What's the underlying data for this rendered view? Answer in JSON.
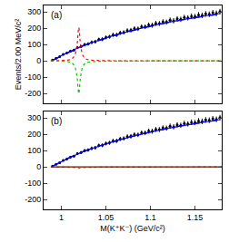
{
  "chart_data": [
    {
      "type": "scatter",
      "annotation": "(a)",
      "y_label": "Events/2.00 MeV/c²",
      "xlim": [
        0.98,
        1.18
      ],
      "xticks": [
        1,
        1.05,
        1.1,
        1.15
      ],
      "ylim": [
        -260,
        340
      ],
      "yticks": [
        -200,
        -100,
        0,
        100,
        200,
        300
      ],
      "tick_labels": "y",
      "series": [
        {
          "type": "scatter",
          "color": "#000000",
          "marker": "circle",
          "x": [
            0.99,
            0.994,
            0.998,
            1.002,
            1.006,
            1.01,
            1.014,
            1.018,
            1.022,
            1.026,
            1.03,
            1.034,
            1.038,
            1.042,
            1.046,
            1.05,
            1.054,
            1.058,
            1.062,
            1.066,
            1.07,
            1.074,
            1.078,
            1.082,
            1.086,
            1.09,
            1.094,
            1.098,
            1.102,
            1.106,
            1.11,
            1.114,
            1.118,
            1.122,
            1.126,
            1.13,
            1.134,
            1.138,
            1.142,
            1.146,
            1.15,
            1.154,
            1.158,
            1.162,
            1.166,
            1.17,
            1.174,
            1.178
          ],
          "values": [
            5,
            16,
            26,
            40,
            48,
            60,
            66,
            82,
            88,
            100,
            104,
            114,
            118,
            132,
            133,
            144,
            148,
            160,
            160,
            172,
            175,
            186,
            188,
            198,
            197,
            210,
            209,
            220,
            219,
            230,
            229,
            240,
            238,
            250,
            246,
            258,
            255,
            267,
            264,
            274,
            272,
            282,
            279,
            288,
            286,
            295,
            292,
            302
          ],
          "error": [
            2,
            4,
            5,
            6,
            7,
            8,
            8,
            9,
            9,
            10,
            10,
            11,
            11,
            11,
            12,
            12,
            12,
            13,
            13,
            13,
            13,
            14,
            14,
            14,
            14,
            14,
            14,
            15,
            15,
            15,
            15,
            15,
            15,
            16,
            16,
            16,
            16,
            16,
            16,
            17,
            16,
            17,
            17,
            17,
            17,
            17,
            17,
            17
          ]
        },
        {
          "type": "line",
          "color": "#0000ff",
          "line_style": "solid",
          "x": [
            0.99,
            0.994,
            0.998,
            1.002,
            1.006,
            1.01,
            1.014,
            1.018,
            1.022,
            1.026,
            1.03,
            1.034,
            1.038,
            1.042,
            1.046,
            1.05,
            1.054,
            1.058,
            1.062,
            1.066,
            1.07,
            1.074,
            1.078,
            1.082,
            1.086,
            1.09,
            1.094,
            1.098,
            1.102,
            1.106,
            1.11,
            1.114,
            1.118,
            1.122,
            1.126,
            1.13,
            1.134,
            1.138,
            1.142,
            1.146,
            1.15,
            1.154,
            1.158,
            1.162,
            1.166,
            1.17,
            1.174,
            1.178
          ],
          "values": [
            5,
            15,
            27,
            38,
            49,
            59,
            68,
            78,
            88,
            97,
            105,
            113,
            120,
            127,
            134,
            141,
            148,
            155,
            161,
            167,
            173,
            179,
            185,
            190,
            196,
            201,
            206,
            211,
            216,
            221,
            226,
            230,
            235,
            239,
            243,
            247,
            251,
            255,
            259,
            262,
            266,
            270,
            273,
            277,
            280,
            283,
            287,
            290
          ]
        },
        {
          "type": "line",
          "color": "#0000ff",
          "line_style": "dashed",
          "x": [
            0.99,
            0.994,
            0.998,
            1.002,
            1.006,
            1.01,
            1.014,
            1.018,
            1.022,
            1.026,
            1.03,
            1.034,
            1.038,
            1.042,
            1.046,
            1.05,
            1.054,
            1.058,
            1.062,
            1.066,
            1.07,
            1.074,
            1.078,
            1.082,
            1.086,
            1.09,
            1.094,
            1.098,
            1.102,
            1.106,
            1.11,
            1.114,
            1.118,
            1.122,
            1.126,
            1.13,
            1.134,
            1.138,
            1.142,
            1.146,
            1.15,
            1.154,
            1.158,
            1.162,
            1.166,
            1.17,
            1.174,
            1.178
          ],
          "values": [
            4,
            13,
            24,
            35,
            46,
            56,
            65,
            76,
            86,
            95,
            103,
            111,
            118,
            125,
            132,
            139,
            146,
            153,
            159,
            165,
            171,
            177,
            183,
            188,
            194,
            199,
            204,
            209,
            214,
            219,
            224,
            228,
            233,
            237,
            241,
            245,
            249,
            253,
            257,
            260,
            264,
            268,
            271,
            275,
            278,
            281,
            285,
            288
          ]
        },
        {
          "type": "line",
          "color": "#ff0000",
          "line_style": "dotted",
          "x": [
            0.988,
            1.0,
            1.008,
            1.012,
            1.015,
            1.017,
            1.018,
            1.019,
            1.0195,
            1.02,
            1.021,
            1.022,
            1.024,
            1.027,
            1.032,
            1.04,
            1.06,
            1.18
          ],
          "values": [
            0,
            2,
            6,
            14,
            35,
            80,
            120,
            190,
            205,
            190,
            120,
            80,
            35,
            14,
            6,
            3,
            1,
            0
          ]
        },
        {
          "type": "line",
          "color": "#00cc00",
          "line_style": "dotted",
          "x": [
            0.988,
            1.0,
            1.008,
            1.012,
            1.015,
            1.017,
            1.018,
            1.019,
            1.0195,
            1.02,
            1.021,
            1.022,
            1.024,
            1.027,
            1.032,
            1.04,
            1.06,
            1.18
          ],
          "values": [
            0,
            -2,
            -6,
            -14,
            -35,
            -80,
            -120,
            -185,
            -200,
            -185,
            -120,
            -80,
            -35,
            -14,
            -6,
            -3,
            -1,
            0
          ]
        }
      ]
    },
    {
      "type": "scatter",
      "annotation": "(b)",
      "x_label": "M(K⁺K⁻) (GeV/c²)",
      "xlim": [
        0.98,
        1.18
      ],
      "xticks": [
        1,
        1.05,
        1.1,
        1.15
      ],
      "ylim": [
        -260,
        340
      ],
      "yticks": [
        -200,
        -100,
        0,
        100,
        200,
        300
      ],
      "series": [
        {
          "type": "scatter",
          "color": "#000000",
          "marker": "circle",
          "x": [
            0.99,
            0.994,
            0.998,
            1.002,
            1.006,
            1.01,
            1.014,
            1.018,
            1.022,
            1.026,
            1.03,
            1.034,
            1.038,
            1.042,
            1.046,
            1.05,
            1.054,
            1.058,
            1.062,
            1.066,
            1.07,
            1.074,
            1.078,
            1.082,
            1.086,
            1.09,
            1.094,
            1.098,
            1.102,
            1.106,
            1.11,
            1.114,
            1.118,
            1.122,
            1.126,
            1.13,
            1.134,
            1.138,
            1.142,
            1.146,
            1.15,
            1.154,
            1.158,
            1.162,
            1.166,
            1.17,
            1.174,
            1.178
          ],
          "values": [
            5,
            16,
            26,
            40,
            48,
            60,
            66,
            82,
            88,
            100,
            104,
            114,
            118,
            132,
            133,
            144,
            148,
            160,
            160,
            172,
            175,
            186,
            188,
            198,
            197,
            210,
            209,
            220,
            219,
            230,
            229,
            240,
            238,
            250,
            246,
            258,
            255,
            267,
            264,
            274,
            272,
            282,
            279,
            288,
            286,
            295,
            292,
            302
          ],
          "error": [
            2,
            4,
            5,
            6,
            7,
            8,
            8,
            9,
            9,
            10,
            10,
            11,
            11,
            11,
            12,
            12,
            12,
            13,
            13,
            13,
            13,
            14,
            14,
            14,
            14,
            14,
            14,
            15,
            15,
            15,
            15,
            15,
            15,
            16,
            16,
            16,
            16,
            16,
            16,
            17,
            16,
            17,
            17,
            17,
            17,
            17,
            17,
            17
          ]
        },
        {
          "type": "line",
          "color": "#0000ff",
          "line_style": "solid",
          "x": [
            0.99,
            0.994,
            0.998,
            1.002,
            1.006,
            1.01,
            1.014,
            1.018,
            1.022,
            1.026,
            1.03,
            1.034,
            1.038,
            1.042,
            1.046,
            1.05,
            1.054,
            1.058,
            1.062,
            1.066,
            1.07,
            1.074,
            1.078,
            1.082,
            1.086,
            1.09,
            1.094,
            1.098,
            1.102,
            1.106,
            1.11,
            1.114,
            1.118,
            1.122,
            1.126,
            1.13,
            1.134,
            1.138,
            1.142,
            1.146,
            1.15,
            1.154,
            1.158,
            1.162,
            1.166,
            1.17,
            1.174,
            1.178
          ],
          "values": [
            5,
            15,
            27,
            38,
            49,
            59,
            68,
            78,
            88,
            97,
            105,
            113,
            120,
            127,
            134,
            141,
            148,
            155,
            161,
            167,
            173,
            179,
            185,
            190,
            196,
            201,
            206,
            211,
            216,
            221,
            226,
            230,
            235,
            239,
            243,
            247,
            251,
            255,
            259,
            262,
            266,
            270,
            273,
            277,
            280,
            283,
            287,
            290
          ]
        },
        {
          "type": "line",
          "color": "#0000ff",
          "line_style": "dashed",
          "x": [
            0.99,
            0.994,
            0.998,
            1.002,
            1.006,
            1.01,
            1.014,
            1.018,
            1.022,
            1.026,
            1.03,
            1.034,
            1.038,
            1.042,
            1.046,
            1.05,
            1.054,
            1.058,
            1.062,
            1.066,
            1.07,
            1.074,
            1.078,
            1.082,
            1.086,
            1.09,
            1.094,
            1.098,
            1.102,
            1.106,
            1.11,
            1.114,
            1.118,
            1.122,
            1.126,
            1.13,
            1.134,
            1.138,
            1.142,
            1.146,
            1.15,
            1.154,
            1.158,
            1.162,
            1.166,
            1.17,
            1.174,
            1.178
          ],
          "values": [
            5,
            16,
            28,
            39,
            50,
            61,
            70,
            80,
            90,
            98,
            106,
            114,
            121,
            128,
            135,
            142,
            149,
            156,
            162,
            168,
            174,
            180,
            185,
            191,
            196,
            201,
            206,
            211,
            216,
            221,
            226,
            230,
            235,
            239,
            243,
            247,
            251,
            255,
            259,
            262,
            266,
            270,
            273,
            277,
            280,
            283,
            287,
            290
          ]
        },
        {
          "type": "line",
          "color": "#00cc00",
          "line_style": "dotted",
          "x": [
            0.988,
            1.0,
            1.01,
            1.015,
            1.018,
            1.0195,
            1.021,
            1.025,
            1.035,
            1.06,
            1.18
          ],
          "values": [
            0,
            -1,
            -2,
            -4,
            -7,
            -8,
            -7,
            -4,
            -2,
            -1,
            0
          ]
        },
        {
          "type": "line",
          "color": "#8b0000",
          "line_style": "solid",
          "x": [
            0.988,
            1.18
          ],
          "values": [
            0,
            0
          ]
        }
      ]
    }
  ]
}
